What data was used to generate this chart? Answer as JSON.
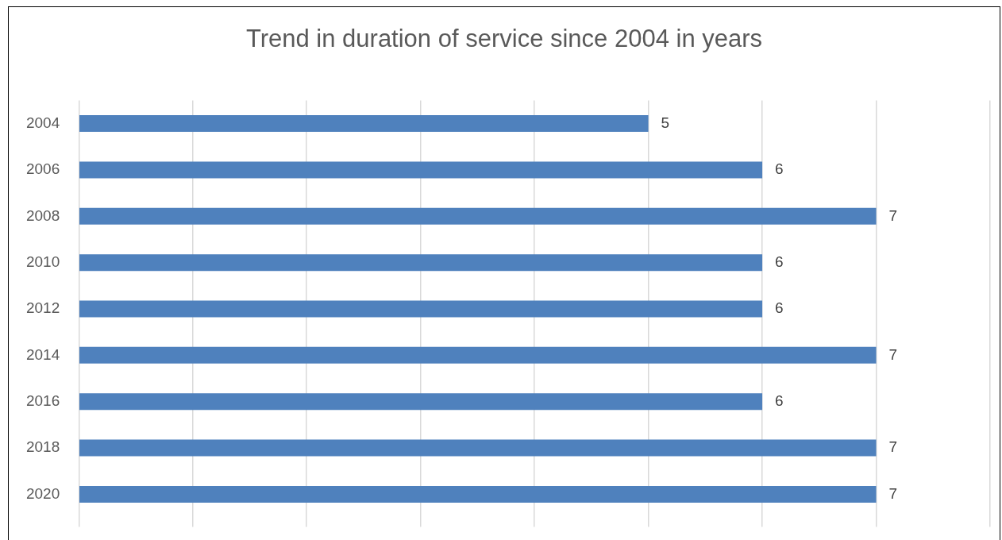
{
  "chart_data": {
    "type": "bar",
    "orientation": "horizontal",
    "title": "Trend in duration of service since 2004 in years",
    "categories": [
      "2004",
      "2006",
      "2008",
      "2010",
      "2012",
      "2014",
      "2016",
      "2018",
      "2020"
    ],
    "values": [
      5,
      6,
      7,
      6,
      6,
      7,
      6,
      7,
      7
    ],
    "color": "#4f81bd",
    "xlim": [
      0,
      8
    ],
    "xticks": [
      {
        "value": 0,
        "label": null
      },
      {
        "value": 1,
        "label": null
      },
      {
        "value": 2,
        "label": null
      },
      {
        "value": 3,
        "label": null
      },
      {
        "value": 4,
        "label": null
      },
      {
        "value": 5,
        "label": null
      },
      {
        "value": 6,
        "label": null
      },
      {
        "value": 7,
        "label": null
      },
      {
        "value": 8,
        "label": null
      }
    ],
    "grid": "x",
    "tick_labels": "y",
    "data_labels": true,
    "legend": false
  }
}
